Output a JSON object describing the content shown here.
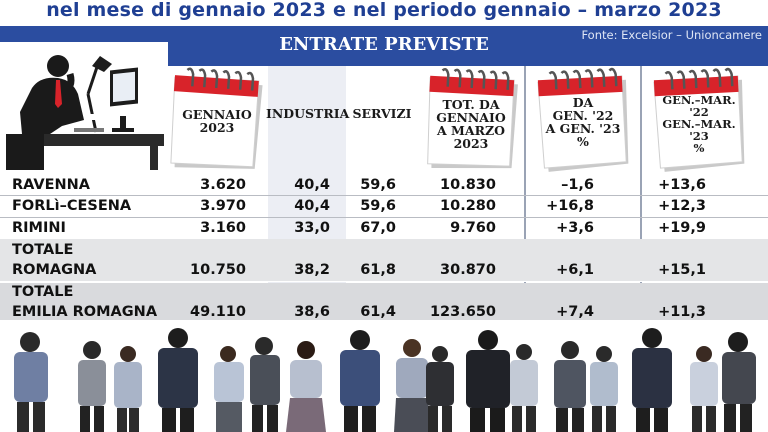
{
  "title": "nel mese di gennaio 2023 e nel periodo gennaio – marzo 2023",
  "banner": {
    "heading": "ENTRATE PREVISTE",
    "source": "Fonte: Excelsior – Unioncamere"
  },
  "columns": {
    "gennaio": [
      "GENNAIO",
      "2023"
    ],
    "industria": "INDUSTRIA",
    "servizi": "SERVIZI",
    "tot": [
      "TOT. DA",
      "GENNAIO",
      "A MARZO",
      "2023"
    ],
    "var1": [
      "DA",
      "GEN. '22",
      "A GEN. '23",
      "%"
    ],
    "var2": [
      "GEN.–MAR.",
      "'22",
      "GEN.–MAR.",
      "'23",
      "%"
    ]
  },
  "rows": [
    {
      "name": [
        "RAVENNA"
      ],
      "gennaio": "3.620",
      "industria": "40,4",
      "servizi": "59,6",
      "tot": "10.830",
      "var1": "–1,6",
      "var2": "+13,6"
    },
    {
      "name": [
        "FORLì–CESENA"
      ],
      "gennaio": "3.970",
      "industria": "40,4",
      "servizi": "59,6",
      "tot": "10.280",
      "var1": "+16,8",
      "var2": "+12,3"
    },
    {
      "name": [
        "RIMINI"
      ],
      "gennaio": "3.160",
      "industria": "33,0",
      "servizi": "67,0",
      "tot": "9.760",
      "var1": "+3,6",
      "var2": "+19,9"
    },
    {
      "name": [
        "TOTALE",
        "ROMAGNA"
      ],
      "gennaio": "10.750",
      "industria": "38,2",
      "servizi": "61,8",
      "tot": "30.870",
      "var1": "+6,1",
      "var2": "+15,1"
    },
    {
      "name": [
        "TOTALE",
        "EMILIA ROMAGNA"
      ],
      "gennaio": "49.110",
      "industria": "38,6",
      "servizi": "61,4",
      "tot": "123.650",
      "var1": "+7,4",
      "var2": "+11,3"
    }
  ],
  "colors": {
    "banner": "#2b4da0",
    "title": "#1f3f93",
    "calendar_red": "#d8232a"
  }
}
